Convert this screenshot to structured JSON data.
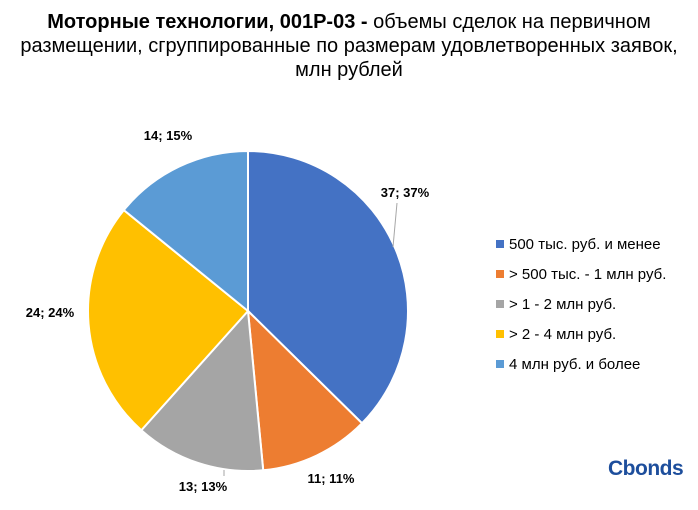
{
  "title_bold": "Моторные технологии, 001Р-03 -",
  "title_rest": " объемы сделок на первичном размещении, сгруппированные по размерам удовлетворенных заявок, млн рублей",
  "brand": "Cbonds",
  "chart_data": {
    "type": "pie",
    "title": "Моторные технологии, 001Р-03 - объемы сделок на первичном размещении, сгруппированные по размерам удовлетворенных заявок, млн рублей",
    "legend_position": "right",
    "start_angle": "12 o'clock, clockwise",
    "slices": [
      {
        "category": "500 тыс. руб. и менее",
        "value": 37,
        "percent": 37,
        "label": "37; 37%",
        "color": "#4472C4"
      },
      {
        "category": "> 500 тыс. - 1 млн руб.",
        "value": 11,
        "percent": 11,
        "label": "11; 11%",
        "color": "#ED7D31"
      },
      {
        "category": "> 1 - 2 млн руб.",
        "value": 13,
        "percent": 13,
        "label": "13; 13%",
        "color": "#A5A5A5"
      },
      {
        "category": "> 2 - 4 млн руб.",
        "value": 24,
        "percent": 24,
        "label": "24; 24%",
        "color": "#FFC000"
      },
      {
        "category": "4 млн руб. и более",
        "value": 14,
        "percent": 15,
        "label": "14; 15%",
        "color": "#5B9BD5"
      }
    ]
  }
}
